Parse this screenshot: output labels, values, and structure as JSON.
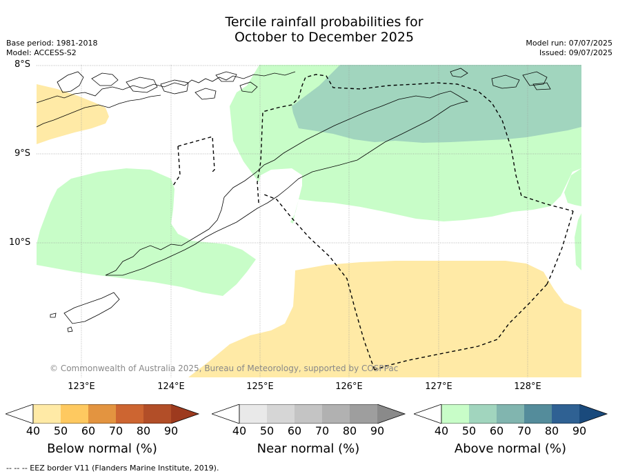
{
  "title_line1": "Tercile rainfall probabilities for",
  "title_line2": "October to December 2025",
  "base_period": "Base period: 1981-2018",
  "model": "Model: ACCESS-S2",
  "model_run": "Model run: 07/07/2025",
  "issued": "Issued: 09/07/2025",
  "lat_labels": [
    "8°S",
    "9°S",
    "10°S"
  ],
  "lon_labels": [
    "123°E",
    "124°E",
    "125°E",
    "126°E",
    "127°E",
    "128°E"
  ],
  "credit": "© Commonwealth of Australia 2025, Bureau of Meteorology, supported by COSPPac",
  "colorbars": [
    {
      "title": "Below normal (%)",
      "ticks": [
        "40",
        "50",
        "60",
        "70",
        "80",
        "90"
      ],
      "colors": [
        "#ffeaa6",
        "#fec960",
        "#e39440",
        "#cd6531",
        "#b24e28",
        "#9d3a1e"
      ]
    },
    {
      "title": "Near normal (%)",
      "ticks": [
        "40",
        "50",
        "60",
        "70",
        "80",
        "90"
      ],
      "colors": [
        "#e9e9e9",
        "#d6d6d6",
        "#c4c4c4",
        "#b1b1b1",
        "#9e9e9e",
        "#8a8a8a"
      ]
    },
    {
      "title": "Above normal (%)",
      "ticks": [
        "40",
        "50",
        "60",
        "70",
        "80",
        "90"
      ],
      "colors": [
        "#c8fdc8",
        "#a1d5be",
        "#81b5af",
        "#548c9b",
        "#2f6193",
        "#1a4a7c"
      ]
    }
  ],
  "footnote": "--  --  -- EEZ border V11 (Flanders Marine Institute, 2019).",
  "map": {
    "extent": {
      "lon": [
        122.5,
        128.6
      ],
      "lat": [
        -11.5,
        -8.0
      ]
    },
    "categories": [
      {
        "name": "Above normal 40-50%",
        "color": "#c8fdc8"
      },
      {
        "name": "Above normal 50-60%",
        "color": "#a1d5be"
      },
      {
        "name": "Below normal 40-50%",
        "color": "#ffeaa6"
      }
    ],
    "eez_color": "#000000",
    "coast_color": "#000000"
  }
}
